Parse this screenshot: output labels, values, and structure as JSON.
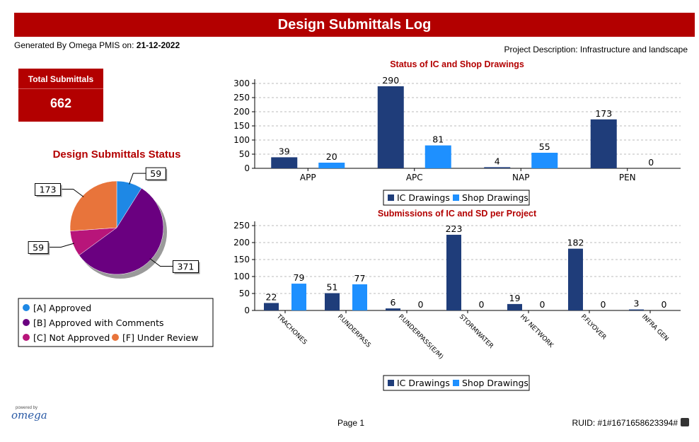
{
  "header": {
    "title": "Design Submittals Log",
    "generated_label": "Generated By Omega PMIS on: ",
    "generated_date": "21-12-2022",
    "project_description": "Project Description: Infrastructure and landscape"
  },
  "total": {
    "label": "Total Submittals",
    "value": "662"
  },
  "colors": {
    "ic": "#1f3d7a",
    "shop": "#1e90ff",
    "accent": "#b30000"
  },
  "chart_data": [
    {
      "type": "pie",
      "title": "Design Submittals Status",
      "slices": [
        {
          "name": "[A] Approved",
          "value": 59,
          "color": "#1e88e5"
        },
        {
          "name": "[B] Approved with Comments",
          "value": 371,
          "color": "#6a0080"
        },
        {
          "name": "[C] Not Approved",
          "value": 59,
          "color": "#b8157a"
        },
        {
          "name": "[F] Under Review",
          "value": 173,
          "color": "#e8743b"
        }
      ],
      "legend": "bottom"
    },
    {
      "type": "bar",
      "title": "Status of IC and Shop Drawings",
      "categories": [
        "APP",
        "APC",
        "NAP",
        "PEN"
      ],
      "series": [
        {
          "name": "IC Drawings",
          "values": [
            39,
            290,
            4,
            173
          ]
        },
        {
          "name": "Shop Drawings",
          "values": [
            20,
            81,
            55,
            0
          ]
        }
      ],
      "ylim": [
        0,
        300
      ],
      "yticks": [
        0,
        50,
        100,
        150,
        200,
        250,
        300
      ],
      "grid": true,
      "legend": "bottom"
    },
    {
      "type": "bar",
      "title": "Submissions of IC and SD per Project",
      "categories": [
        "TRACHONES",
        "P.UNDERPASS",
        "P.UNDERPASS(E/M)",
        "STORMWATER",
        "HV NETWORK",
        "P.FLYOVER",
        "INFRA GEN"
      ],
      "series": [
        {
          "name": "IC Drawings",
          "values": [
            22,
            51,
            6,
            223,
            19,
            182,
            3
          ]
        },
        {
          "name": "Shop Drawings",
          "values": [
            79,
            77,
            0,
            0,
            0,
            0,
            0
          ]
        }
      ],
      "ylim": [
        0,
        250
      ],
      "yticks": [
        0,
        50,
        100,
        150,
        200,
        250
      ],
      "grid": true,
      "legend": "bottom"
    }
  ],
  "footer": {
    "page": "Page 1",
    "ruid": "RUID: #1#1671658623394#",
    "logo_small": "powered by",
    "logo": "omega"
  }
}
